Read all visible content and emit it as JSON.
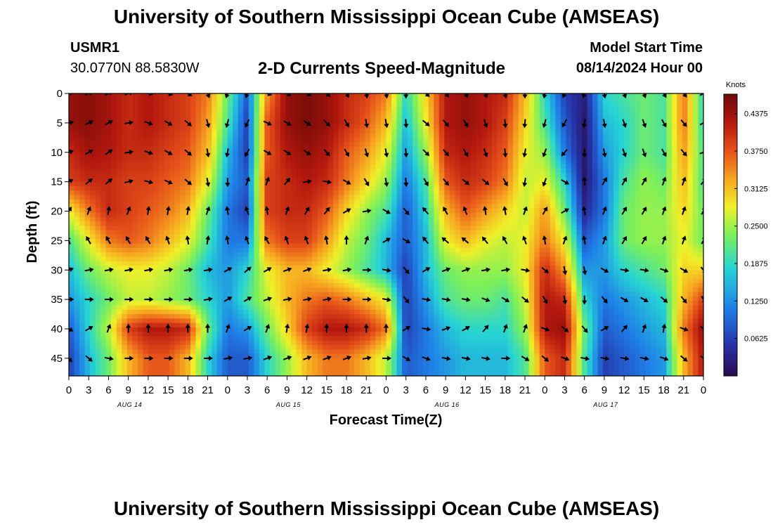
{
  "header": {
    "title": "University of Southern Mississippi Ocean Cube (AMSEAS)",
    "station_id": "USMR1",
    "station_coords": "30.0770N  88.5830W",
    "model_start_label": "Model Start Time",
    "model_start_value": "08/14/2024 Hour 00"
  },
  "footer": {
    "title": "University of Southern Mississippi Ocean Cube (AMSEAS)"
  },
  "chart_data": {
    "type": "heatmap",
    "title": "2-D Currents Speed-Magnitude",
    "xlabel": "Forecast Time(Z)",
    "ylabel": "Depth (ft)",
    "x_hours": [
      0,
      3,
      6,
      9,
      12,
      15,
      18,
      21,
      24,
      27,
      30,
      33,
      36,
      39,
      42,
      45,
      48,
      51,
      54,
      57,
      60,
      63,
      66,
      69,
      72,
      75,
      78,
      81,
      84,
      87,
      90,
      93,
      96
    ],
    "xtick_labels": [
      "0",
      "3",
      "6",
      "9",
      "12",
      "15",
      "18",
      "21",
      "0",
      "3",
      "6",
      "9",
      "12",
      "15",
      "18",
      "21",
      "0",
      "3",
      "6",
      "9",
      "12",
      "15",
      "18",
      "21",
      "0",
      "3",
      "6",
      "9",
      "12",
      "15",
      "18",
      "21",
      "0"
    ],
    "date_labels": [
      {
        "label": "AUG 14",
        "hour": 9
      },
      {
        "label": "AUG 15",
        "hour": 33
      },
      {
        "label": "AUG 16",
        "hour": 57
      },
      {
        "label": "AUG 17",
        "hour": 81
      }
    ],
    "depths_ft": [
      0,
      5,
      10,
      15,
      20,
      25,
      30,
      35,
      40,
      45
    ],
    "ytick_labels": [
      "0",
      "5",
      "10",
      "15",
      "20",
      "25",
      "30",
      "35",
      "40",
      "45"
    ],
    "ylim": [
      0,
      48
    ],
    "xlim": [
      0,
      96
    ],
    "colorbar": {
      "unit": "Knots",
      "min": 0,
      "max": 0.47,
      "tick_values": [
        0.0625,
        0.125,
        0.1875,
        0.25,
        0.3125,
        0.375,
        0.4375
      ],
      "tick_labels": [
        "0.0625",
        "0.1250",
        "0.1875",
        "0.2500",
        "0.3125",
        "0.3750",
        "0.4375"
      ],
      "colors": [
        "#2a0a4a",
        "#2633a8",
        "#1f7fe8",
        "#26d4d4",
        "#7cf05a",
        "#f0f028",
        "#f7a420",
        "#e5501a",
        "#b3180e",
        "#6e0909"
      ]
    },
    "speed_knots": [
      [
        0.44,
        0.45,
        0.43,
        0.4,
        0.42,
        0.4,
        0.38,
        0.34,
        0.2,
        0.08,
        0.32,
        0.44,
        0.46,
        0.44,
        0.4,
        0.38,
        0.34,
        0.16,
        0.28,
        0.42,
        0.44,
        0.42,
        0.4,
        0.3,
        0.16,
        0.06,
        0.03,
        0.16,
        0.18,
        0.2,
        0.18,
        0.34,
        0.16
      ],
      [
        0.44,
        0.45,
        0.43,
        0.4,
        0.42,
        0.4,
        0.38,
        0.32,
        0.18,
        0.06,
        0.36,
        0.44,
        0.46,
        0.44,
        0.4,
        0.36,
        0.3,
        0.14,
        0.26,
        0.42,
        0.44,
        0.42,
        0.38,
        0.28,
        0.18,
        0.08,
        0.02,
        0.14,
        0.16,
        0.2,
        0.18,
        0.34,
        0.16
      ],
      [
        0.4,
        0.43,
        0.42,
        0.4,
        0.4,
        0.38,
        0.36,
        0.3,
        0.14,
        0.06,
        0.36,
        0.42,
        0.44,
        0.42,
        0.36,
        0.32,
        0.26,
        0.12,
        0.22,
        0.4,
        0.42,
        0.4,
        0.36,
        0.26,
        0.22,
        0.1,
        0.02,
        0.12,
        0.16,
        0.2,
        0.18,
        0.32,
        0.18
      ],
      [
        0.38,
        0.4,
        0.4,
        0.38,
        0.38,
        0.36,
        0.34,
        0.26,
        0.12,
        0.08,
        0.38,
        0.4,
        0.42,
        0.4,
        0.34,
        0.28,
        0.22,
        0.1,
        0.18,
        0.36,
        0.4,
        0.38,
        0.34,
        0.24,
        0.26,
        0.16,
        0.02,
        0.1,
        0.18,
        0.22,
        0.2,
        0.3,
        0.18
      ],
      [
        0.26,
        0.34,
        0.4,
        0.38,
        0.36,
        0.34,
        0.3,
        0.2,
        0.1,
        0.06,
        0.38,
        0.4,
        0.4,
        0.36,
        0.28,
        0.22,
        0.18,
        0.08,
        0.16,
        0.3,
        0.36,
        0.32,
        0.28,
        0.24,
        0.32,
        0.2,
        0.04,
        0.1,
        0.2,
        0.22,
        0.22,
        0.28,
        0.2
      ],
      [
        0.18,
        0.26,
        0.34,
        0.36,
        0.34,
        0.3,
        0.26,
        0.18,
        0.1,
        0.1,
        0.34,
        0.38,
        0.38,
        0.32,
        0.24,
        0.2,
        0.14,
        0.08,
        0.14,
        0.26,
        0.3,
        0.26,
        0.24,
        0.26,
        0.34,
        0.26,
        0.08,
        0.12,
        0.2,
        0.22,
        0.22,
        0.26,
        0.2
      ],
      [
        0.14,
        0.2,
        0.24,
        0.26,
        0.26,
        0.24,
        0.2,
        0.14,
        0.12,
        0.16,
        0.26,
        0.3,
        0.3,
        0.26,
        0.22,
        0.18,
        0.14,
        0.06,
        0.14,
        0.2,
        0.22,
        0.22,
        0.22,
        0.26,
        0.4,
        0.32,
        0.12,
        0.12,
        0.16,
        0.18,
        0.2,
        0.28,
        0.28
      ],
      [
        0.12,
        0.16,
        0.2,
        0.24,
        0.24,
        0.22,
        0.2,
        0.16,
        0.12,
        0.18,
        0.24,
        0.3,
        0.34,
        0.36,
        0.34,
        0.3,
        0.26,
        0.06,
        0.12,
        0.18,
        0.2,
        0.2,
        0.18,
        0.24,
        0.42,
        0.4,
        0.16,
        0.1,
        0.12,
        0.14,
        0.16,
        0.3,
        0.38
      ],
      [
        0.08,
        0.16,
        0.24,
        0.38,
        0.42,
        0.42,
        0.4,
        0.2,
        0.1,
        0.12,
        0.2,
        0.28,
        0.38,
        0.42,
        0.42,
        0.4,
        0.34,
        0.06,
        0.1,
        0.14,
        0.16,
        0.16,
        0.16,
        0.22,
        0.42,
        0.44,
        0.2,
        0.08,
        0.1,
        0.12,
        0.14,
        0.34,
        0.44
      ],
      [
        0.06,
        0.14,
        0.2,
        0.3,
        0.36,
        0.36,
        0.3,
        0.16,
        0.08,
        0.08,
        0.16,
        0.22,
        0.3,
        0.34,
        0.34,
        0.3,
        0.24,
        0.08,
        0.1,
        0.12,
        0.14,
        0.14,
        0.14,
        0.18,
        0.36,
        0.4,
        0.18,
        0.06,
        0.08,
        0.1,
        0.12,
        0.3,
        0.42
      ]
    ],
    "current_direction_deg": [
      [
        80,
        70,
        60,
        70,
        100,
        110,
        120,
        160,
        200,
        200,
        110,
        120,
        120,
        130,
        150,
        170,
        170,
        180,
        130,
        140,
        150,
        160,
        170,
        180,
        190,
        200,
        200,
        170,
        160,
        160,
        150,
        140,
        60
      ],
      [
        75,
        65,
        60,
        80,
        110,
        120,
        130,
        165,
        195,
        205,
        115,
        120,
        125,
        135,
        150,
        170,
        170,
        175,
        130,
        140,
        150,
        160,
        175,
        185,
        195,
        210,
        190,
        170,
        160,
        160,
        150,
        140,
        60
      ],
      [
        70,
        60,
        55,
        80,
        110,
        120,
        130,
        170,
        190,
        210,
        120,
        125,
        125,
        140,
        150,
        165,
        170,
        175,
        135,
        140,
        150,
        160,
        175,
        190,
        200,
        220,
        180,
        170,
        160,
        160,
        150,
        140,
        70
      ],
      [
        60,
        50,
        50,
        75,
        105,
        115,
        130,
        170,
        180,
        20,
        20,
        40,
        80,
        100,
        120,
        150,
        170,
        175,
        150,
        140,
        130,
        130,
        150,
        190,
        200,
        120,
        0,
        30,
        30,
        30,
        20,
        20,
        40
      ],
      [
        30,
        20,
        10,
        20,
        10,
        10,
        10,
        20,
        350,
        340,
        350,
        20,
        30,
        40,
        60,
        80,
        120,
        140,
        320,
        330,
        340,
        350,
        350,
        20,
        30,
        60,
        350,
        20,
        30,
        30,
        20,
        20,
        30
      ],
      [
        340,
        330,
        330,
        330,
        330,
        340,
        350,
        10,
        350,
        340,
        330,
        340,
        340,
        350,
        0,
        20,
        60,
        120,
        320,
        310,
        310,
        320,
        330,
        340,
        350,
        20,
        350,
        20,
        30,
        30,
        20,
        20,
        30
      ],
      [
        70,
        80,
        80,
        80,
        80,
        80,
        80,
        80,
        60,
        50,
        60,
        70,
        70,
        80,
        80,
        90,
        100,
        140,
        60,
        70,
        70,
        80,
        80,
        100,
        130,
        170,
        170,
        120,
        100,
        100,
        110,
        120,
        140
      ],
      [
        90,
        90,
        90,
        90,
        90,
        90,
        90,
        80,
        60,
        60,
        70,
        80,
        80,
        80,
        90,
        90,
        100,
        140,
        100,
        100,
        100,
        110,
        120,
        130,
        150,
        170,
        180,
        140,
        120,
        120,
        130,
        140,
        150
      ],
      [
        120,
        60,
        20,
        0,
        0,
        0,
        0,
        0,
        20,
        60,
        20,
        10,
        10,
        0,
        0,
        0,
        0,
        60,
        100,
        70,
        60,
        40,
        20,
        20,
        110,
        130,
        140,
        60,
        40,
        20,
        10,
        110,
        130
      ],
      [
        140,
        130,
        100,
        90,
        90,
        90,
        90,
        90,
        80,
        80,
        70,
        70,
        70,
        70,
        70,
        80,
        90,
        120,
        110,
        100,
        100,
        100,
        90,
        120,
        130,
        110,
        100,
        100,
        100,
        100,
        110,
        130,
        130
      ]
    ]
  }
}
